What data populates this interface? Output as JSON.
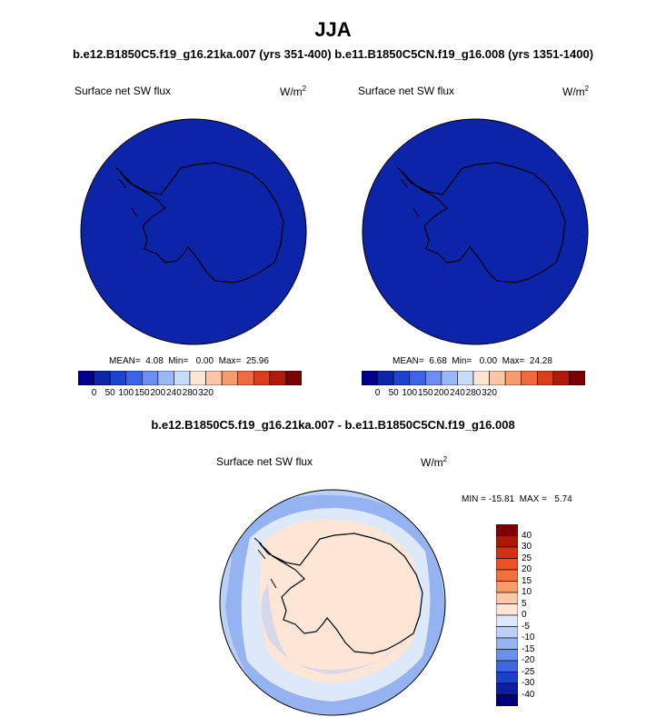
{
  "title": "JJA",
  "subtitle": "b.e12.B1850C5.f19_g16.21ka.007 (yrs 351-400) b.e11.B1850C5CN.f19_g16.008 (yrs 1351-1400)",
  "panels": [
    {
      "variable": "Surface net SW flux",
      "units": "W/m",
      "units_sup": "2",
      "stats": "MEAN=  4.08  Min=   0.00  Max=  25.96"
    },
    {
      "variable": "Surface net SW flux",
      "units": "W/m",
      "units_sup": "2",
      "stats": "MEAN=  6.68  Min=   0.00  Max=  24.28"
    }
  ],
  "top_colorbar": {
    "colors": [
      "#00008c",
      "#0b24a8",
      "#1c44d2",
      "#3a63e6",
      "#6b8ef0",
      "#9bb7f5",
      "#c9dcf8",
      "#fde5d5",
      "#fbc6a6",
      "#f79a6c",
      "#f06a3e",
      "#dc3d1a",
      "#b01a08",
      "#7c0000"
    ],
    "ticks": [
      "0",
      "50",
      "100",
      "150",
      "200",
      "240",
      "280",
      "320"
    ]
  },
  "diff": {
    "title": "b.e12.B1850C5.f19_g16.21ka.007 - b.e11.B1850C5CN.f19_g16.008",
    "variable": "Surface net SW flux",
    "units": "W/m",
    "units_sup": "2",
    "stats": "MIN = -15.81  MAX =   5.74",
    "colorbar": {
      "labels": [
        "40",
        "30",
        "25",
        "20",
        "15",
        "10",
        "5",
        "0",
        "-5",
        "-10",
        "-15",
        "-20",
        "-25",
        "-30",
        "-40"
      ],
      "colors": [
        "#7c0000",
        "#a91a05",
        "#d03212",
        "#ef4f22",
        "#f5703e",
        "#f89a6c",
        "#fbc7a4",
        "#fde6d6",
        "#dde9f9",
        "#bcd0f6",
        "#95b3f1",
        "#6a8ee9",
        "#3f66de",
        "#1d3fc9",
        "#0a1fa6",
        "#00007a"
      ]
    }
  },
  "colors": {
    "ocean_top": "#0b24a8",
    "diff_outer": "#bcd0f6",
    "diff_mid": "#dde9f9",
    "diff_band": "#95b3f1",
    "diff_land": "#fde6d6"
  }
}
